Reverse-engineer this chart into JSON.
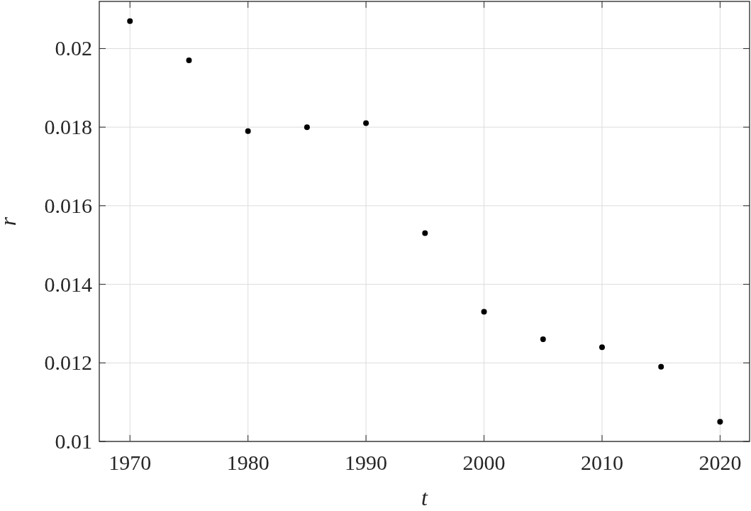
{
  "chart_data": {
    "type": "scatter",
    "xlabel": "t",
    "ylabel": "r",
    "x": [
      1970,
      1975,
      1980,
      1985,
      1990,
      1995,
      2000,
      2005,
      2010,
      2015,
      2020
    ],
    "series": [
      {
        "color": "#000000",
        "values": [
          0.0207,
          0.0197,
          0.0179,
          0.018,
          0.0181,
          0.0153,
          0.0133,
          0.0126,
          0.0124,
          0.0119,
          0.0105
        ]
      }
    ],
    "xlim": [
      1967.4,
      2022.5
    ],
    "ylim": [
      0.01,
      0.0212
    ],
    "xticks": [
      1970,
      1980,
      1990,
      2000,
      2010,
      2020
    ],
    "yticks": [
      0.01,
      0.012,
      0.014,
      0.016,
      0.018,
      0.02
    ],
    "grid": true,
    "marker": "circle"
  }
}
